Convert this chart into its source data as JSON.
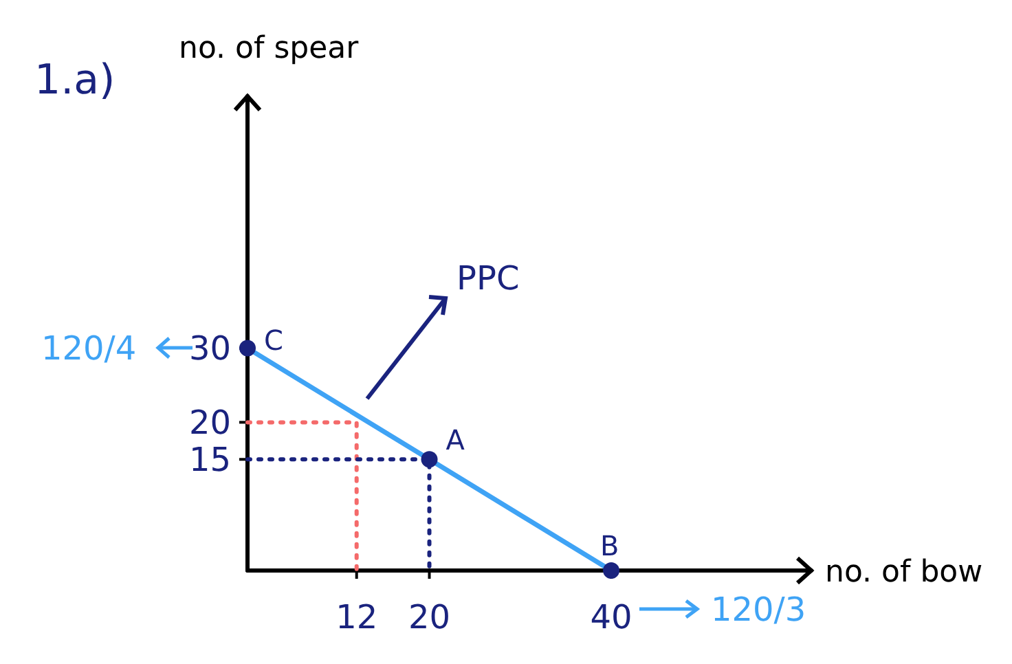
{
  "chart_data": {
    "type": "line",
    "title": "1.a)",
    "xlabel": "no. of bow",
    "ylabel": "no. of spear",
    "xlim": [
      0,
      62
    ],
    "ylim": [
      0,
      64
    ],
    "xticks": [
      12,
      20,
      40
    ],
    "yticks": [
      15,
      20,
      30
    ],
    "grid": false,
    "series": [
      {
        "color": "#3fa3f5",
        "x": [
          0,
          20,
          40
        ],
        "values": [
          30,
          15,
          0
        ],
        "marker": "circle",
        "line_style": "solid"
      },
      {
        "color": "#f46a6a",
        "x": [
          0,
          12,
          12
        ],
        "values": [
          20,
          20,
          0
        ],
        "marker": "none",
        "line_style": "dotted"
      },
      {
        "color": "#1a237e",
        "x": [
          0,
          20,
          20
        ],
        "values": [
          15,
          15,
          0
        ],
        "marker": "none",
        "line_style": "dotted"
      }
    ],
    "annotations": [
      {
        "text": "C",
        "x": 0,
        "y": 30
      },
      {
        "text": "A",
        "x": 20,
        "y": 15
      },
      {
        "text": "B",
        "x": 40,
        "y": 0
      },
      "PPC",
      "120/4",
      "120/3"
    ]
  }
}
